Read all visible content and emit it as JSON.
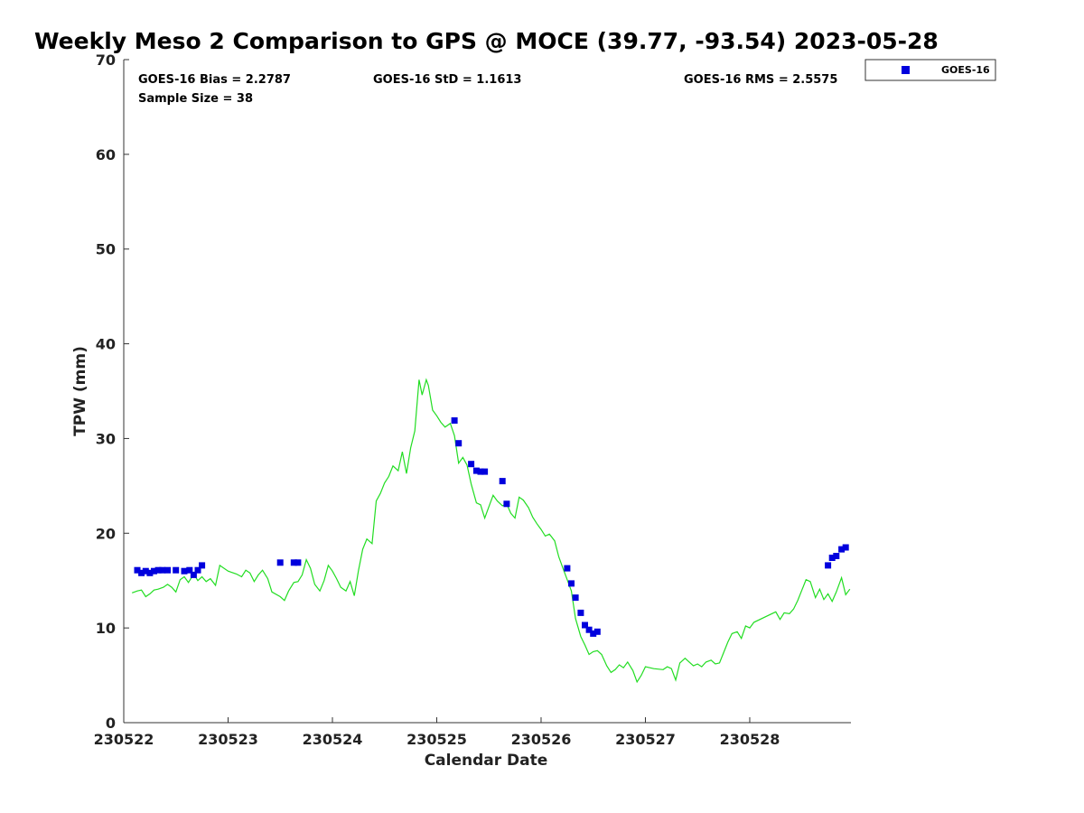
{
  "chart_data": {
    "type": "scatter",
    "title": "Weekly Meso 2 Comparison to GPS @ MOCE (39.77, -93.54) 2023-05-28",
    "xlabel": "Calendar Date",
    "ylabel": "TPW (mm)",
    "xlim": [
      0,
      6.97
    ],
    "ylim": [
      0,
      70
    ],
    "x_ticks": [
      {
        "value": 0,
        "label": "230522"
      },
      {
        "value": 1,
        "label": "230523"
      },
      {
        "value": 2,
        "label": "230524"
      },
      {
        "value": 3,
        "label": "230525"
      },
      {
        "value": 4,
        "label": "230526"
      },
      {
        "value": 5,
        "label": "230527"
      },
      {
        "value": 6,
        "label": "230528"
      }
    ],
    "y_ticks": [
      0,
      10,
      20,
      30,
      40,
      50,
      60,
      70
    ],
    "grid": false,
    "legend_position": "top-right, outside plot",
    "stats": {
      "bias": "GOES-16 Bias = 2.2787",
      "std": "GOES-16 StD = 1.1613",
      "rms": "GOES-16 RMS = 2.5575",
      "sample": "Sample Size = 38"
    },
    "series": [
      {
        "name": "GOES-16",
        "kind": "scatter",
        "marker": "square",
        "color": "#0000dd",
        "points": [
          [
            0.13,
            16.1
          ],
          [
            0.17,
            15.8
          ],
          [
            0.21,
            16.0
          ],
          [
            0.25,
            15.8
          ],
          [
            0.29,
            16.0
          ],
          [
            0.33,
            16.1
          ],
          [
            0.37,
            16.1
          ],
          [
            0.42,
            16.1
          ],
          [
            0.5,
            16.1
          ],
          [
            0.58,
            16.0
          ],
          [
            0.63,
            16.1
          ],
          [
            0.67,
            15.6
          ],
          [
            0.71,
            16.1
          ],
          [
            0.75,
            16.6
          ],
          [
            1.5,
            16.9
          ],
          [
            1.63,
            16.9
          ],
          [
            1.67,
            16.9
          ],
          [
            3.17,
            31.9
          ],
          [
            3.21,
            29.5
          ],
          [
            3.33,
            27.3
          ],
          [
            3.38,
            26.6
          ],
          [
            3.42,
            26.5
          ],
          [
            3.46,
            26.5
          ],
          [
            3.63,
            25.5
          ],
          [
            3.67,
            23.1
          ],
          [
            4.25,
            16.3
          ],
          [
            4.29,
            14.7
          ],
          [
            4.33,
            13.2
          ],
          [
            4.38,
            11.6
          ],
          [
            4.42,
            10.3
          ],
          [
            4.46,
            9.8
          ],
          [
            4.5,
            9.4
          ],
          [
            4.54,
            9.6
          ],
          [
            6.75,
            16.6
          ],
          [
            6.79,
            17.4
          ],
          [
            6.83,
            17.6
          ],
          [
            6.88,
            18.3
          ],
          [
            6.92,
            18.5
          ]
        ]
      },
      {
        "kind": "line",
        "color": "#22dd22",
        "points": [
          [
            0.08,
            13.7
          ],
          [
            0.13,
            13.9
          ],
          [
            0.17,
            14.0
          ],
          [
            0.21,
            13.3
          ],
          [
            0.25,
            13.6
          ],
          [
            0.29,
            14.0
          ],
          [
            0.33,
            14.1
          ],
          [
            0.38,
            14.3
          ],
          [
            0.42,
            14.6
          ],
          [
            0.46,
            14.3
          ],
          [
            0.5,
            13.8
          ],
          [
            0.54,
            15.1
          ],
          [
            0.58,
            15.4
          ],
          [
            0.62,
            14.8
          ],
          [
            0.67,
            15.7
          ],
          [
            0.71,
            15.0
          ],
          [
            0.75,
            15.4
          ],
          [
            0.79,
            14.9
          ],
          [
            0.83,
            15.2
          ],
          [
            0.88,
            14.5
          ],
          [
            0.92,
            16.6
          ],
          [
            1.0,
            16.0
          ],
          [
            1.08,
            15.7
          ],
          [
            1.13,
            15.4
          ],
          [
            1.17,
            16.1
          ],
          [
            1.21,
            15.8
          ],
          [
            1.25,
            14.9
          ],
          [
            1.29,
            15.6
          ],
          [
            1.33,
            16.1
          ],
          [
            1.38,
            15.2
          ],
          [
            1.42,
            13.8
          ],
          [
            1.5,
            13.3
          ],
          [
            1.54,
            12.9
          ],
          [
            1.58,
            13.9
          ],
          [
            1.63,
            14.8
          ],
          [
            1.67,
            14.9
          ],
          [
            1.71,
            15.6
          ],
          [
            1.75,
            17.2
          ],
          [
            1.79,
            16.3
          ],
          [
            1.83,
            14.6
          ],
          [
            1.88,
            13.9
          ],
          [
            1.92,
            15.0
          ],
          [
            1.96,
            16.6
          ],
          [
            2.0,
            16.0
          ],
          [
            2.04,
            15.2
          ],
          [
            2.08,
            14.3
          ],
          [
            2.13,
            13.9
          ],
          [
            2.17,
            14.9
          ],
          [
            2.21,
            13.4
          ],
          [
            2.25,
            16.1
          ],
          [
            2.29,
            18.3
          ],
          [
            2.33,
            19.4
          ],
          [
            2.38,
            18.9
          ],
          [
            2.42,
            23.4
          ],
          [
            2.46,
            24.2
          ],
          [
            2.5,
            25.3
          ],
          [
            2.54,
            26.0
          ],
          [
            2.58,
            27.1
          ],
          [
            2.63,
            26.6
          ],
          [
            2.67,
            28.6
          ],
          [
            2.71,
            26.3
          ],
          [
            2.75,
            29.0
          ],
          [
            2.79,
            30.8
          ],
          [
            2.83,
            36.2
          ],
          [
            2.86,
            34.6
          ],
          [
            2.9,
            36.2
          ],
          [
            2.92,
            35.6
          ],
          [
            2.96,
            33.0
          ],
          [
            3.0,
            32.4
          ],
          [
            3.04,
            31.7
          ],
          [
            3.08,
            31.2
          ],
          [
            3.13,
            31.6
          ],
          [
            3.17,
            30.3
          ],
          [
            3.21,
            27.4
          ],
          [
            3.25,
            28.0
          ],
          [
            3.29,
            27.2
          ],
          [
            3.33,
            25.2
          ],
          [
            3.38,
            23.2
          ],
          [
            3.42,
            23.0
          ],
          [
            3.46,
            21.6
          ],
          [
            3.5,
            22.8
          ],
          [
            3.54,
            24.0
          ],
          [
            3.58,
            23.4
          ],
          [
            3.63,
            22.9
          ],
          [
            3.67,
            23.1
          ],
          [
            3.71,
            22.1
          ],
          [
            3.75,
            21.6
          ],
          [
            3.79,
            23.8
          ],
          [
            3.83,
            23.5
          ],
          [
            3.88,
            22.7
          ],
          [
            3.92,
            21.7
          ],
          [
            3.96,
            21.0
          ],
          [
            4.0,
            20.4
          ],
          [
            4.04,
            19.7
          ],
          [
            4.08,
            19.9
          ],
          [
            4.13,
            19.2
          ],
          [
            4.17,
            17.5
          ],
          [
            4.21,
            16.3
          ],
          [
            4.25,
            15.1
          ],
          [
            4.29,
            13.9
          ],
          [
            4.33,
            11.0
          ],
          [
            4.38,
            9.1
          ],
          [
            4.42,
            8.2
          ],
          [
            4.46,
            7.2
          ],
          [
            4.5,
            7.5
          ],
          [
            4.54,
            7.6
          ],
          [
            4.58,
            7.2
          ],
          [
            4.63,
            6.0
          ],
          [
            4.67,
            5.3
          ],
          [
            4.71,
            5.6
          ],
          [
            4.75,
            6.1
          ],
          [
            4.79,
            5.8
          ],
          [
            4.83,
            6.4
          ],
          [
            4.88,
            5.5
          ],
          [
            4.92,
            4.3
          ],
          [
            4.96,
            5.0
          ],
          [
            5.0,
            5.9
          ],
          [
            5.08,
            5.7
          ],
          [
            5.17,
            5.6
          ],
          [
            5.21,
            5.9
          ],
          [
            5.25,
            5.7
          ],
          [
            5.29,
            4.5
          ],
          [
            5.33,
            6.3
          ],
          [
            5.38,
            6.8
          ],
          [
            5.42,
            6.4
          ],
          [
            5.46,
            6.0
          ],
          [
            5.5,
            6.2
          ],
          [
            5.54,
            5.9
          ],
          [
            5.58,
            6.4
          ],
          [
            5.63,
            6.6
          ],
          [
            5.67,
            6.2
          ],
          [
            5.71,
            6.3
          ],
          [
            5.75,
            7.4
          ],
          [
            5.79,
            8.5
          ],
          [
            5.83,
            9.4
          ],
          [
            5.88,
            9.6
          ],
          [
            5.92,
            8.9
          ],
          [
            5.96,
            10.2
          ],
          [
            6.0,
            10.0
          ],
          [
            6.04,
            10.6
          ],
          [
            6.25,
            11.7
          ],
          [
            6.29,
            10.9
          ],
          [
            6.33,
            11.6
          ],
          [
            6.38,
            11.5
          ],
          [
            6.42,
            12.0
          ],
          [
            6.46,
            12.9
          ],
          [
            6.5,
            14.0
          ],
          [
            6.54,
            15.1
          ],
          [
            6.58,
            14.9
          ],
          [
            6.63,
            13.2
          ],
          [
            6.67,
            14.1
          ],
          [
            6.71,
            13.0
          ],
          [
            6.75,
            13.6
          ],
          [
            6.79,
            12.8
          ],
          [
            6.83,
            13.8
          ],
          [
            6.88,
            15.3
          ],
          [
            6.92,
            13.5
          ],
          [
            6.96,
            14.1
          ]
        ]
      }
    ]
  }
}
